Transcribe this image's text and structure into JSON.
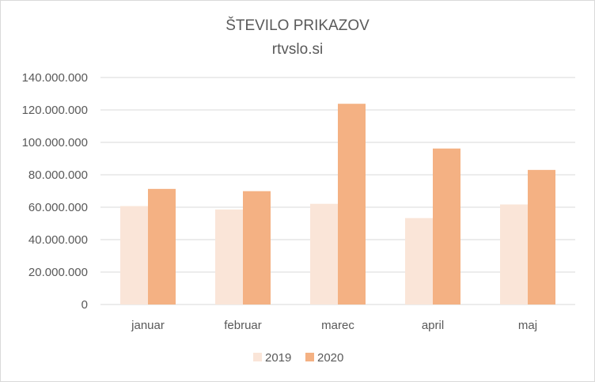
{
  "chart_data": {
    "type": "bar",
    "title": "ŠTEVILO PRIKAZOV",
    "subtitle": "rtvslo.si",
    "categories": [
      "januar",
      "februar",
      "marec",
      "april",
      "maj"
    ],
    "series": [
      {
        "name": "2019",
        "color": "#fae5d8",
        "values": [
          60700000,
          58600000,
          62100000,
          53300000,
          61700000
        ]
      },
      {
        "name": "2020",
        "color": "#f4b183",
        "values": [
          71300000,
          69900000,
          123800000,
          96200000,
          83000000
        ]
      }
    ],
    "ylim": [
      0,
      140000000
    ],
    "yticks": [
      0,
      20000000,
      40000000,
      60000000,
      80000000,
      100000000,
      120000000,
      140000000
    ],
    "ytick_labels": [
      "0",
      "20.000.000",
      "40.000.000",
      "60.000.000",
      "80.000.000",
      "100.000.000",
      "120.000.000",
      "140.000.000"
    ],
    "grid": true,
    "legend_position": "bottom",
    "gridline_color": "#d9d9d9"
  }
}
